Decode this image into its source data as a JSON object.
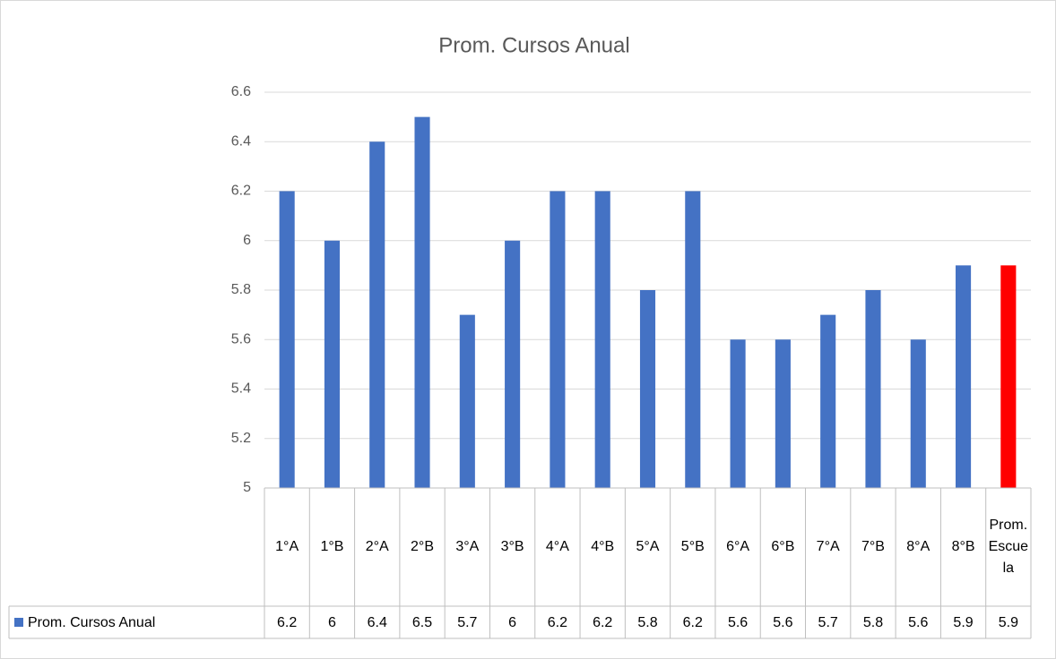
{
  "chart_data": {
    "type": "bar",
    "title": "Prom. Cursos Anual",
    "categories": [
      "1°A",
      "1°B",
      "2°A",
      "2°B",
      "3°A",
      "3°B",
      "4°A",
      "4°B",
      "5°A",
      "5°B",
      "6°A",
      "6°B",
      "7°A",
      "7°B",
      "8°A",
      "8°B",
      "Prom. Escuela"
    ],
    "series": [
      {
        "name": "Prom. Cursos Anual",
        "color": "#4472c4",
        "colors": [
          "#4472c4",
          "#4472c4",
          "#4472c4",
          "#4472c4",
          "#4472c4",
          "#4472c4",
          "#4472c4",
          "#4472c4",
          "#4472c4",
          "#4472c4",
          "#4472c4",
          "#4472c4",
          "#4472c4",
          "#4472c4",
          "#4472c4",
          "#4472c4",
          "#ff0000"
        ],
        "values": [
          6.2,
          6,
          6.4,
          6.5,
          5.7,
          6,
          6.2,
          6.2,
          5.8,
          6.2,
          5.6,
          5.6,
          5.7,
          5.8,
          5.6,
          5.9,
          5.9
        ]
      }
    ],
    "ylim": [
      5,
      6.6
    ],
    "yticks": [
      5,
      5.2,
      5.4,
      5.6,
      5.8,
      6,
      6.2,
      6.4,
      6.6
    ],
    "grid": true,
    "data_table": true
  }
}
